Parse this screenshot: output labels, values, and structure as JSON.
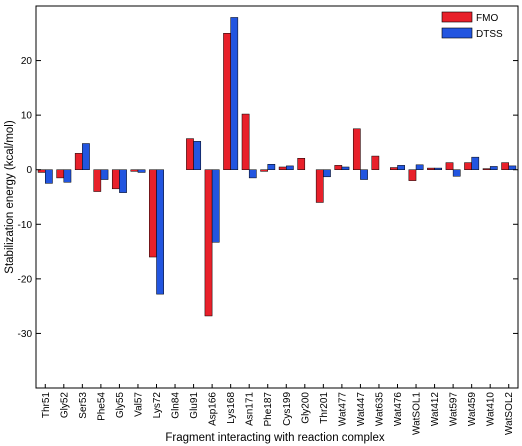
{
  "chart_data": {
    "type": "bar",
    "title": "",
    "xlabel": "Fragment interacting with reaction complex",
    "ylabel": "Stabilization energy (kcal/mol)",
    "ylim": [
      -40,
      30
    ],
    "yticks": [
      -30,
      -20,
      -10,
      0,
      10,
      20
    ],
    "grid": false,
    "legend_position": "top-right",
    "categories": [
      "Thr51",
      "Gly52",
      "Ser53",
      "Phe54",
      "Gly55",
      "Val57",
      "Lys72",
      "Gln84",
      "Glu91",
      "Asp166",
      "Lys168",
      "Asn171",
      "Phe187",
      "Cys199",
      "Gly200",
      "Thr201",
      "Wat477",
      "Wat447",
      "Wat635",
      "Wat476",
      "WatSOL1",
      "Wat412",
      "Wat597",
      "Wat459",
      "Wat410",
      "WatSOL2"
    ],
    "series": [
      {
        "name": "FMO",
        "color": "#e8202a",
        "values": [
          -0.5,
          -1.5,
          3.0,
          -4.0,
          -3.5,
          -0.3,
          -16.0,
          0.0,
          5.7,
          -26.8,
          25.0,
          10.2,
          -0.3,
          0.5,
          2.1,
          -6.0,
          0.8,
          7.5,
          2.5,
          0.4,
          -2.0,
          0.3,
          1.3,
          1.3,
          0.2,
          1.3
        ]
      },
      {
        "name": "DTSS",
        "color": "#2255e0",
        "values": [
          -2.5,
          -2.3,
          4.8,
          -1.8,
          -4.2,
          -0.5,
          -22.8,
          0.0,
          5.2,
          -13.3,
          27.9,
          -1.5,
          1.0,
          0.7,
          0.0,
          -1.3,
          0.5,
          -1.8,
          0.0,
          0.8,
          0.9,
          0.3,
          -1.2,
          2.3,
          0.6,
          0.7
        ]
      }
    ]
  }
}
